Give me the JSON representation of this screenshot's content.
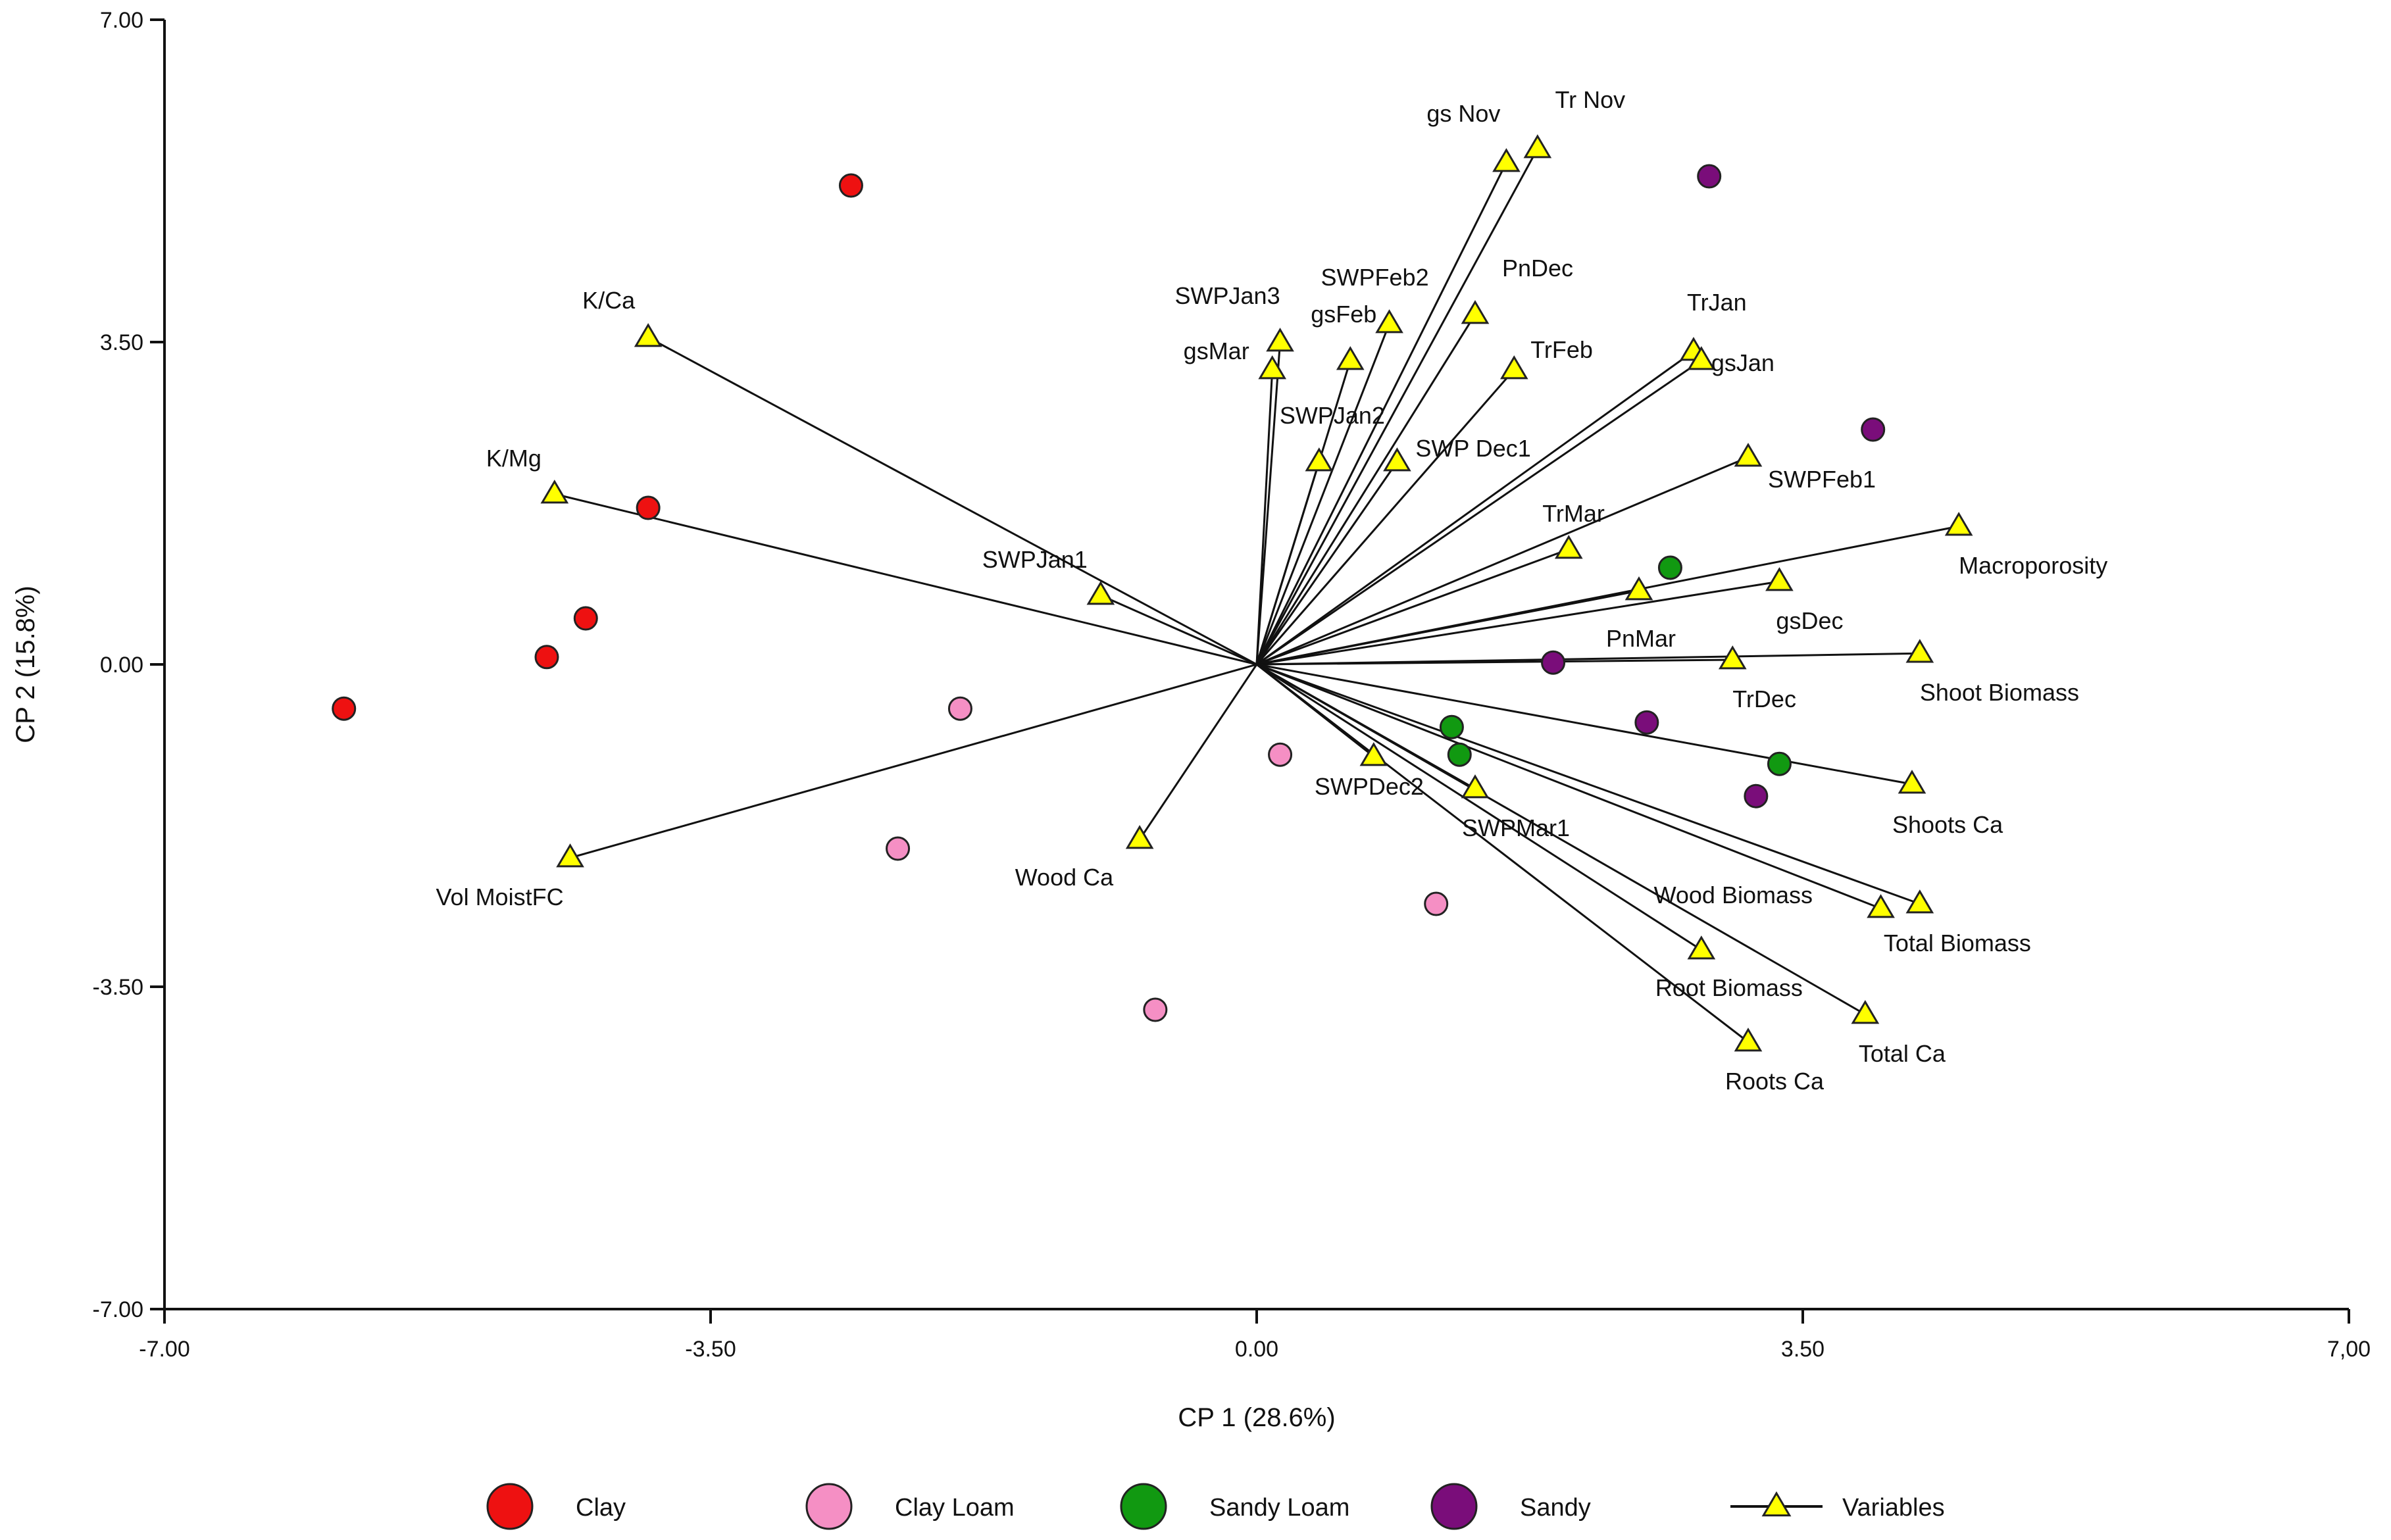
{
  "chart_data": {
    "type": "scatter",
    "subtype": "pca-biplot",
    "xlabel": "CP 1 (28.6%)",
    "ylabel": "CP 2 (15.8%)",
    "xlim": [
      -7.0,
      7.0
    ],
    "ylim": [
      -7.0,
      7.0
    ],
    "xticks": [
      -7.0,
      -3.5,
      0.0,
      3.5,
      7.0
    ],
    "xtick_labels": [
      "-7.00",
      "-3.50",
      "0.00",
      "3.50",
      "7,00"
    ],
    "yticks": [
      7.0,
      3.5,
      0.0,
      -3.5,
      -7.0
    ],
    "ytick_labels": [
      "7.00",
      "3.50",
      "0.00",
      "-3.50",
      "-7.00"
    ],
    "grid": false,
    "legend_position": "bottom",
    "colors": {
      "Clay": "#ee1111",
      "Clay Loam": "#f58fc4",
      "Sandy Loam": "#119911",
      "Sandy": "#7a0d7a",
      "Variables": "#ffff00",
      "vector": "#111111"
    },
    "series": [
      {
        "name": "Clay",
        "points": [
          [
            -2.6,
            5.2
          ],
          [
            -3.9,
            1.7
          ],
          [
            -4.3,
            0.5
          ],
          [
            -4.55,
            0.08
          ],
          [
            -5.85,
            -0.48
          ]
        ]
      },
      {
        "name": "Clay Loam",
        "points": [
          [
            -1.9,
            -0.48
          ],
          [
            -2.3,
            -2.0
          ],
          [
            0.15,
            -0.98
          ],
          [
            1.15,
            -2.6
          ],
          [
            -0.65,
            -3.75
          ]
        ]
      },
      {
        "name": "Sandy Loam",
        "points": [
          [
            2.65,
            1.05
          ],
          [
            1.25,
            -0.68
          ],
          [
            1.3,
            -0.98
          ],
          [
            3.35,
            -1.08
          ]
        ]
      },
      {
        "name": "Sandy",
        "points": [
          [
            2.9,
            5.3
          ],
          [
            3.95,
            2.55
          ],
          [
            1.9,
            0.02
          ],
          [
            2.5,
            -0.63
          ],
          [
            3.2,
            -1.43
          ]
        ]
      }
    ],
    "variables": [
      {
        "label": "gs Nov",
        "x": 1.6,
        "y": 5.45
      },
      {
        "label": "Tr Nov",
        "x": 1.8,
        "y": 5.6
      },
      {
        "label": "SWPJan3",
        "x": 0.15,
        "y": 3.5
      },
      {
        "label": "gsFeb",
        "x": 0.6,
        "y": 3.3
      },
      {
        "label": "SWPFeb2",
        "x": 0.85,
        "y": 3.7
      },
      {
        "label": "PnDec",
        "x": 1.4,
        "y": 3.8
      },
      {
        "label": "gsMar",
        "x": 0.1,
        "y": 3.2
      },
      {
        "label": "TrFeb",
        "x": 1.65,
        "y": 3.2
      },
      {
        "label": "TrJan",
        "x": 2.8,
        "y": 3.4
      },
      {
        "label": "gsJan",
        "x": 2.85,
        "y": 3.3
      },
      {
        "label": "SWPJan2",
        "x": 0.4,
        "y": 2.2
      },
      {
        "label": "SWP Dec1",
        "x": 0.9,
        "y": 2.2
      },
      {
        "label": "SWPFeb1",
        "x": 3.15,
        "y": 2.25
      },
      {
        "label": "TrMar",
        "x": 2.0,
        "y": 1.25
      },
      {
        "label": "Macroporosity",
        "x": 4.5,
        "y": 1.5
      },
      {
        "label": "gsDec",
        "x": 3.35,
        "y": 0.9
      },
      {
        "label": "PnMar",
        "x": 2.45,
        "y": 0.8
      },
      {
        "label": "TrDec",
        "x": 3.05,
        "y": 0.05
      },
      {
        "label": "Shoot Biomass",
        "x": 4.25,
        "y": 0.12
      },
      {
        "label": "Shoots Ca",
        "x": 4.2,
        "y": -1.3
      },
      {
        "label": "SWPDec2",
        "x": 0.75,
        "y": -1.0
      },
      {
        "label": "SWPMar1",
        "x": 1.4,
        "y": -1.35
      },
      {
        "label": "Wood Biomass",
        "x": 4.0,
        "y": -2.65
      },
      {
        "label": "Total Biomass",
        "x": 4.25,
        "y": -2.6
      },
      {
        "label": "Root Biomass",
        "x": 2.85,
        "y": -3.1
      },
      {
        "label": "Total Ca",
        "x": 3.9,
        "y": -3.8
      },
      {
        "label": "Roots Ca",
        "x": 3.15,
        "y": -4.1
      },
      {
        "label": "Wood Ca",
        "x": -0.75,
        "y": -1.9
      },
      {
        "label": "SWPJan1",
        "x": -1.0,
        "y": 0.75
      },
      {
        "label": "K/Ca",
        "x": -3.9,
        "y": 3.55
      },
      {
        "label": "K/Mg",
        "x": -4.5,
        "y": 1.85
      },
      {
        "label": "Vol MoistFC",
        "x": -4.4,
        "y": -2.1
      }
    ],
    "legend": [
      "Clay",
      "Clay Loam",
      "Sandy Loam",
      "Sandy",
      "Variables"
    ]
  }
}
